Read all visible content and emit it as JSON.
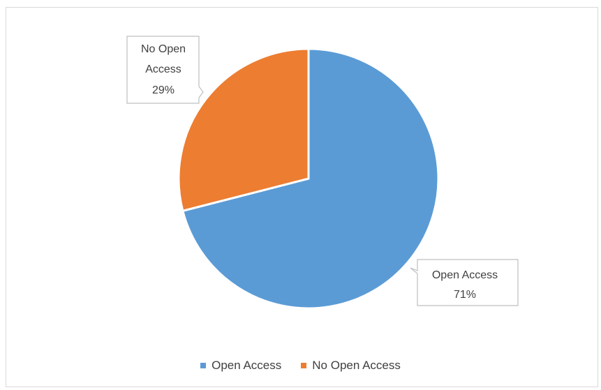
{
  "chart_data": {
    "type": "pie",
    "categories": [
      "Open Access",
      "No Open Access"
    ],
    "values": [
      71,
      29
    ],
    "value_labels": [
      "71%",
      "29%"
    ],
    "colors": [
      "#5b9bd5",
      "#ed7d31"
    ],
    "title": "",
    "legend_position": "bottom",
    "data_label_style": "callout"
  }
}
